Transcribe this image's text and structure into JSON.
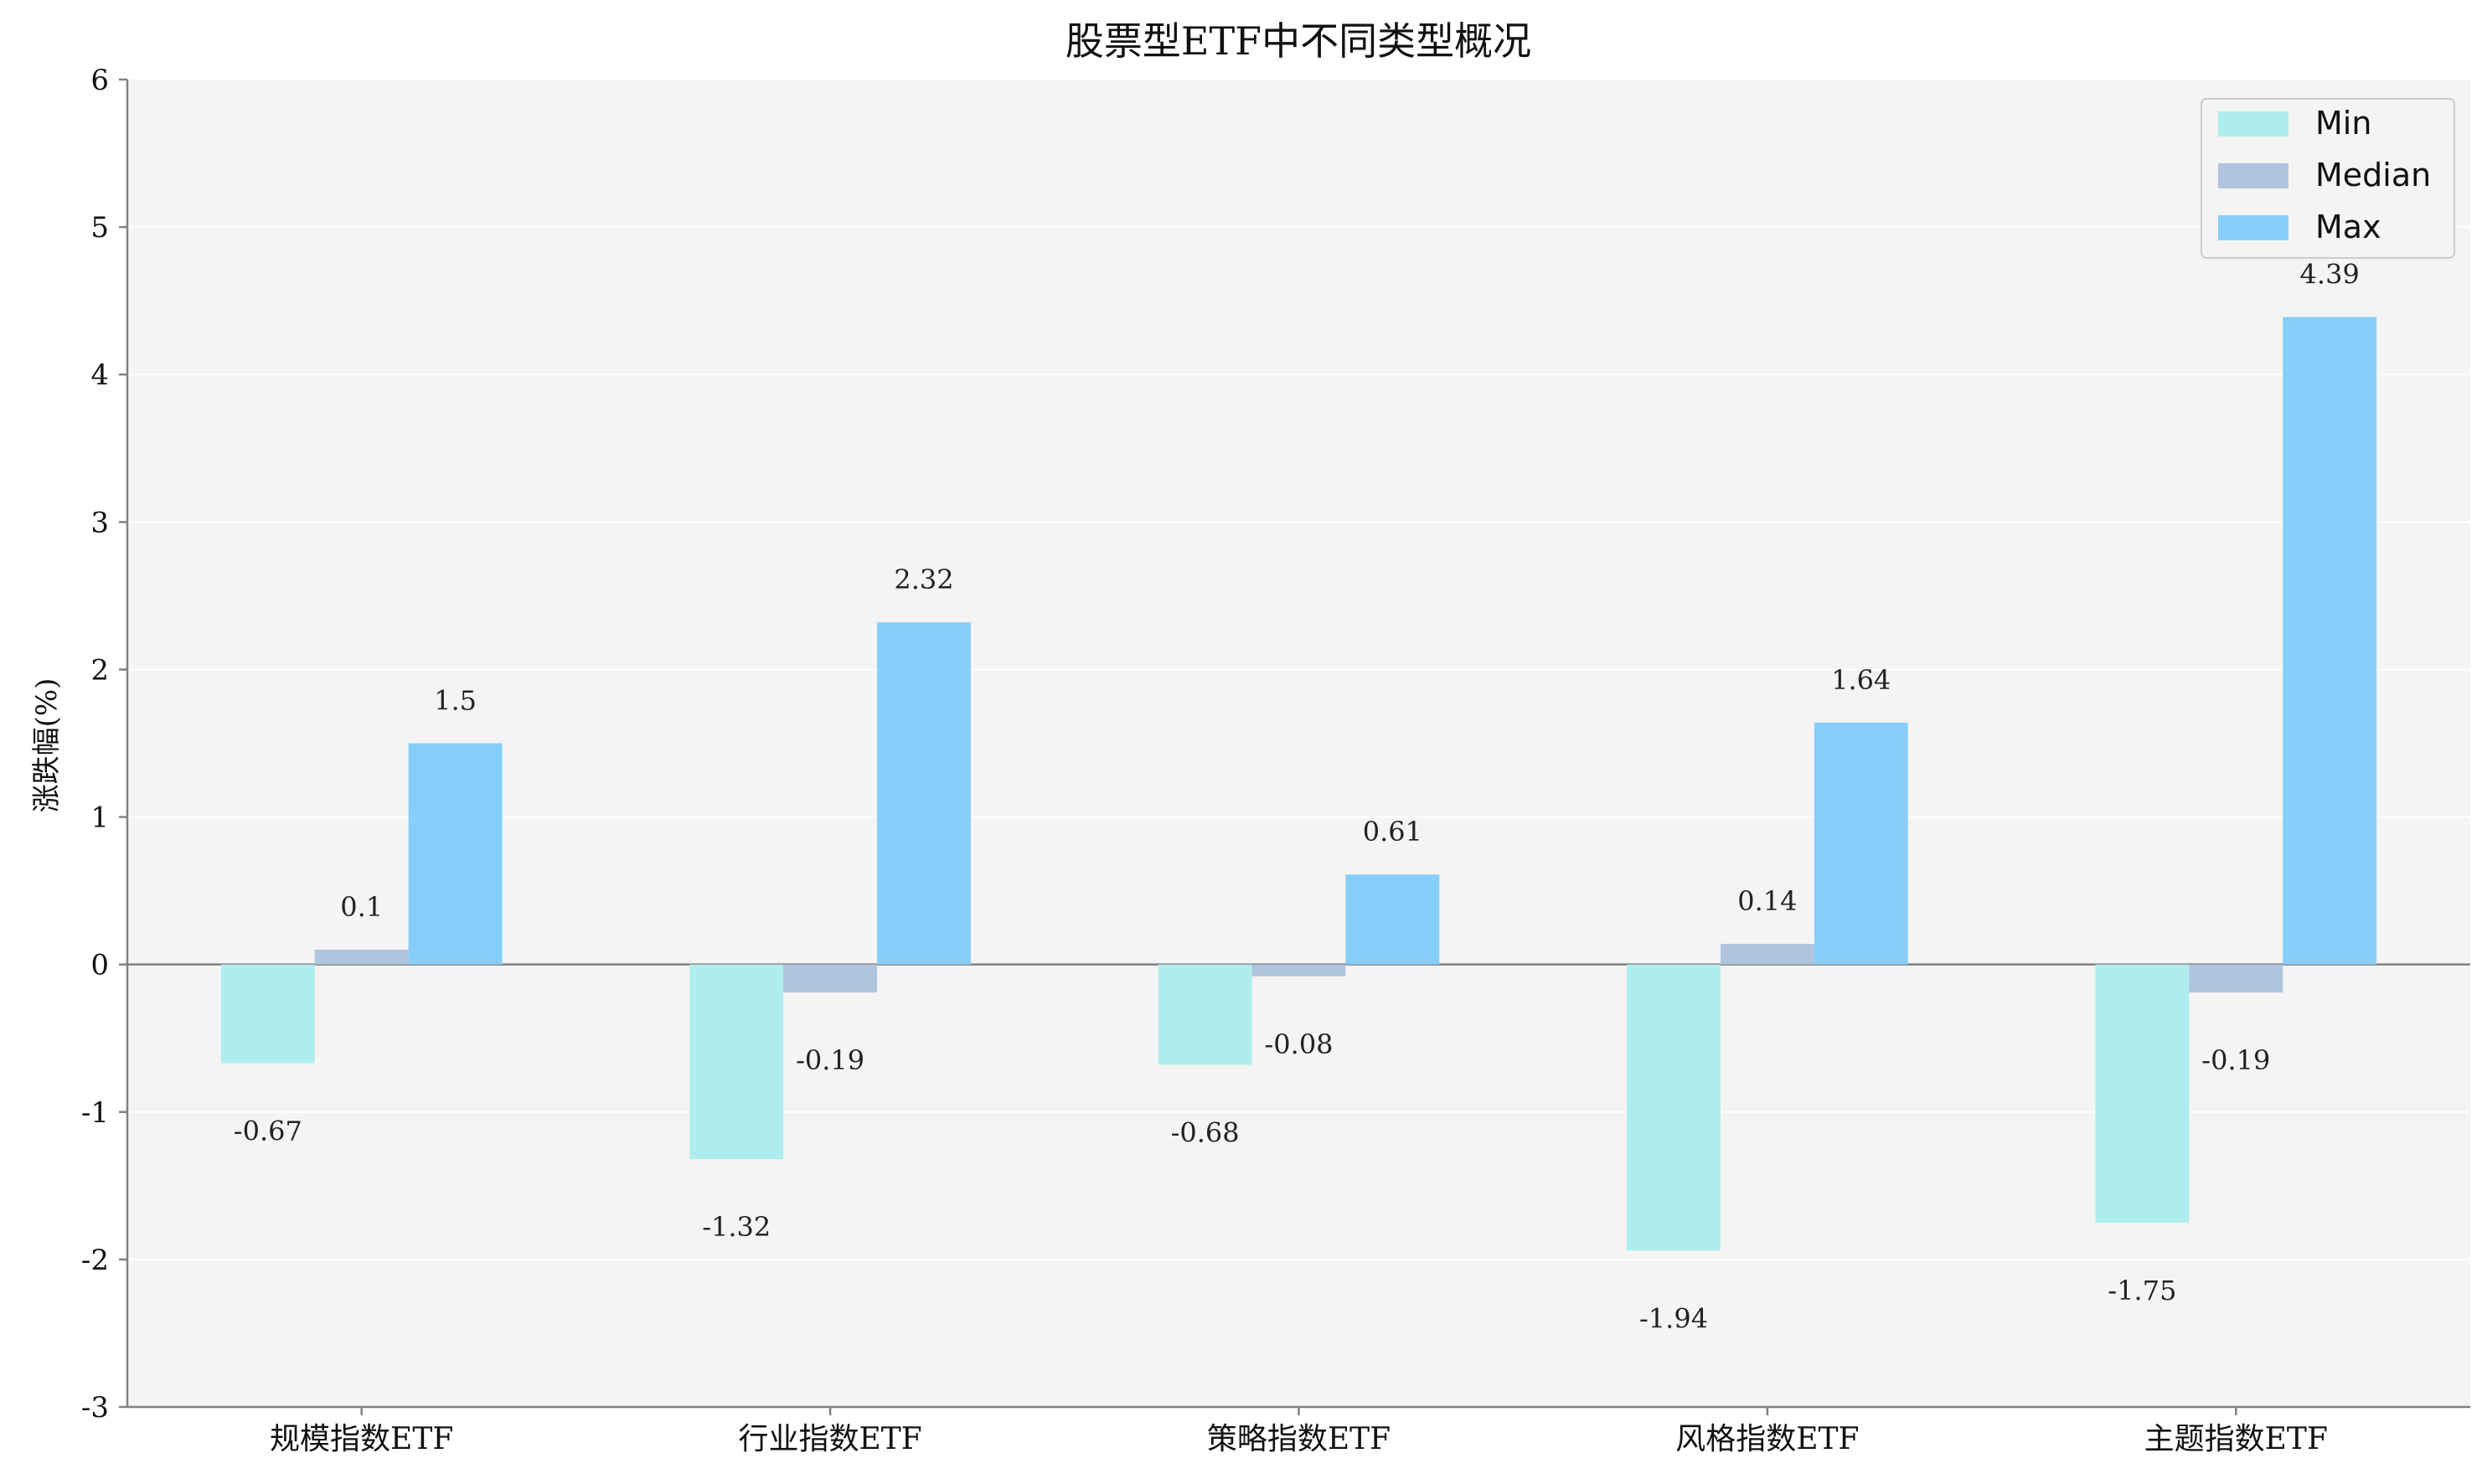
{
  "chart_data": {
    "type": "bar",
    "title": "股票型ETF中不同类型概况",
    "xlabel": "",
    "ylabel": "涨跌幅(%)",
    "categories": [
      "规模指数ETF",
      "行业指数ETF",
      "策略指数ETF",
      "风格指数ETF",
      "主题指数ETF"
    ],
    "series": [
      {
        "name": "Min",
        "values": [
          -0.67,
          -1.32,
          -0.68,
          -1.94,
          -1.75
        ],
        "color": "#afeeee"
      },
      {
        "name": "Median",
        "values": [
          0.1,
          -0.19,
          -0.08,
          0.14,
          -0.19
        ],
        "color": "#b0c4de"
      },
      {
        "name": "Max",
        "values": [
          1.5,
          2.32,
          0.61,
          1.64,
          4.39
        ],
        "color": "#87cefa"
      }
    ],
    "ylim": [
      -3,
      6
    ],
    "yticks": [
      "-3",
      "-2",
      "-1",
      "0",
      "1",
      "2",
      "3",
      "4",
      "5",
      "6"
    ],
    "legend_position": "top-right",
    "grid": "horizontal",
    "background_color": "#f4f4f4"
  }
}
